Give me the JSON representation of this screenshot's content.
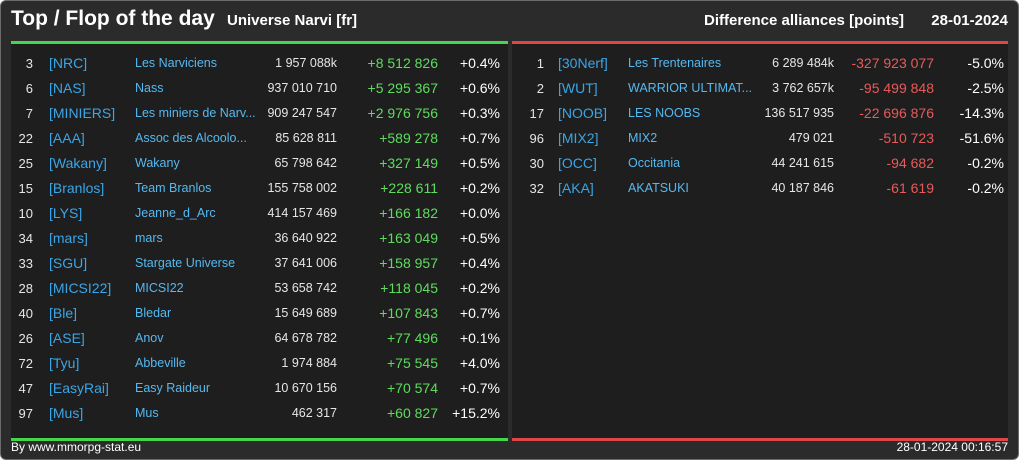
{
  "header": {
    "title": "Top / Flop of the day",
    "universe": "Universe Narvi [fr]",
    "difference_label": "Difference alliances [points]",
    "date": "28-01-2024"
  },
  "colors": {
    "top_accent": "#43d74b",
    "flop_accent": "#e04646",
    "tag": "#3aa6e8"
  },
  "top": [
    {
      "rank": "3",
      "tag": "[NRC]",
      "name": "Les Narviciens",
      "points": "1 957 088k",
      "diff": "+8 512 826",
      "pct": "+0.4%"
    },
    {
      "rank": "6",
      "tag": "[NAS]",
      "name": "Nass",
      "points": "937 010 710",
      "diff": "+5 295 367",
      "pct": "+0.6%"
    },
    {
      "rank": "7",
      "tag": "[MINIERS]",
      "name": "Les miniers de Narv...",
      "points": "909 247 547",
      "diff": "+2 976 756",
      "pct": "+0.3%"
    },
    {
      "rank": "22",
      "tag": "[AAA]",
      "name": "Assoc des Alcoolo...",
      "points": "85 628 811",
      "diff": "+589 278",
      "pct": "+0.7%"
    },
    {
      "rank": "25",
      "tag": "[Wakany]",
      "name": "Wakany",
      "points": "65 798 642",
      "diff": "+327 149",
      "pct": "+0.5%"
    },
    {
      "rank": "15",
      "tag": "[Branlos]",
      "name": "Team Branlos",
      "points": "155 758 002",
      "diff": "+228 611",
      "pct": "+0.2%"
    },
    {
      "rank": "10",
      "tag": "[LYS]",
      "name": "Jeanne_d_Arc",
      "points": "414 157 469",
      "diff": "+166 182",
      "pct": "+0.0%"
    },
    {
      "rank": "34",
      "tag": "[mars]",
      "name": "mars",
      "points": "36 640 922",
      "diff": "+163 049",
      "pct": "+0.5%"
    },
    {
      "rank": "33",
      "tag": "[SGU]",
      "name": "Stargate Universe",
      "points": "37 641 006",
      "diff": "+158 957",
      "pct": "+0.4%"
    },
    {
      "rank": "28",
      "tag": "[MICSI22]",
      "name": "MICSI22",
      "points": "53 658 742",
      "diff": "+118 045",
      "pct": "+0.2%"
    },
    {
      "rank": "40",
      "tag": "[Ble]",
      "name": "Bledar",
      "points": "15 649 689",
      "diff": "+107 843",
      "pct": "+0.7%"
    },
    {
      "rank": "26",
      "tag": "[ASE]",
      "name": "Anov",
      "points": "64 678 782",
      "diff": "+77 496",
      "pct": "+0.1%"
    },
    {
      "rank": "72",
      "tag": "[Tyu]",
      "name": "Abbeville",
      "points": "1 974 884",
      "diff": "+75 545",
      "pct": "+4.0%"
    },
    {
      "rank": "47",
      "tag": "[EasyRai]",
      "name": "Easy Raideur",
      "points": "10 670 156",
      "diff": "+70 574",
      "pct": "+0.7%"
    },
    {
      "rank": "97",
      "tag": "[Mus]",
      "name": "Mus",
      "points": "462 317",
      "diff": "+60 827",
      "pct": "+15.2%"
    }
  ],
  "flop": [
    {
      "rank": "1",
      "tag": "[30Nerf]",
      "name": "Les Trentenaires",
      "points": "6 289 484k",
      "diff": "-327 923 077",
      "pct": "-5.0%"
    },
    {
      "rank": "2",
      "tag": "[WUT]",
      "name": "WARRIOR ULTIMAT...",
      "points": "3 762 657k",
      "diff": "-95 499 848",
      "pct": "-2.5%"
    },
    {
      "rank": "17",
      "tag": "[NOOB]",
      "name": "LES NOOBS",
      "points": "136 517 935",
      "diff": "-22 696 876",
      "pct": "-14.3%"
    },
    {
      "rank": "96",
      "tag": "[MIX2]",
      "name": "MIX2",
      "points": "479 021",
      "diff": "-510 723",
      "pct": "-51.6%"
    },
    {
      "rank": "30",
      "tag": "[OCC]",
      "name": "Occitania",
      "points": "44 241 615",
      "diff": "-94 682",
      "pct": "-0.2%"
    },
    {
      "rank": "32",
      "tag": "[AKA]",
      "name": "AKATSUKI",
      "points": "40 187 846",
      "diff": "-61 619",
      "pct": "-0.2%"
    }
  ],
  "footer": {
    "by": "By www.mmorpg-stat.eu",
    "timestamp": "28-01-2024 00:16:57"
  }
}
